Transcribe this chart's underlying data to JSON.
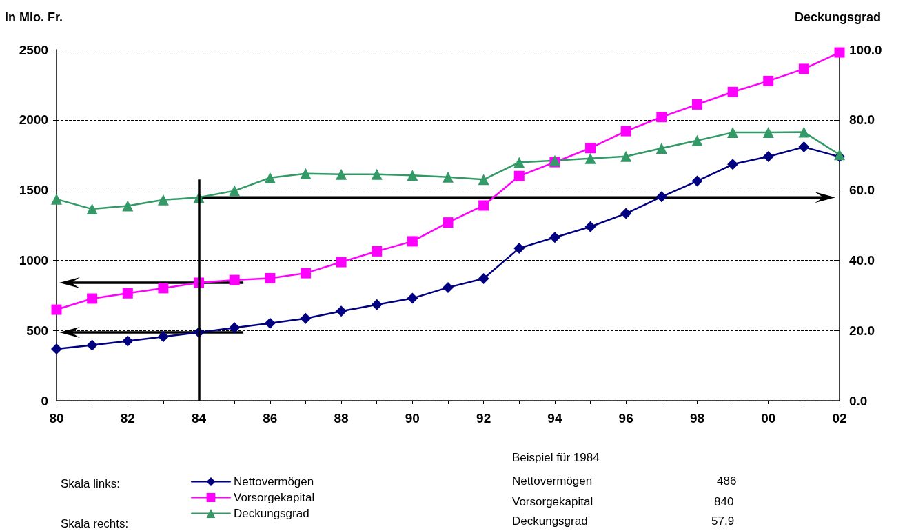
{
  "chart_data": {
    "type": "line",
    "ylabel": "in Mio. Fr.",
    "y2label": "Deckungsgrad",
    "categories": [
      "80",
      null,
      "82",
      null,
      "84",
      null,
      "86",
      null,
      "88",
      null,
      "90",
      null,
      "92",
      null,
      "94",
      null,
      "96",
      null,
      "98",
      null,
      "00",
      null,
      "02"
    ],
    "series": [
      {
        "name": "Nettovermögen",
        "color": "#000080",
        "marker": "diamond",
        "values": [
          368,
          395,
          425,
          455,
          486,
          519,
          551,
          586,
          637,
          684,
          729,
          806,
          869,
          1086,
          1163,
          1239,
          1333,
          1452,
          1564,
          1683,
          1739,
          1807,
          1737
        ]
      },
      {
        "name": "Vorsorgekapital",
        "color": "#ff00ff",
        "marker": "square",
        "values": [
          648,
          727,
          765,
          801,
          840,
          859,
          872,
          908,
          987,
          1064,
          1135,
          1269,
          1390,
          1600,
          1699,
          1799,
          1920,
          2020,
          2110,
          2199,
          2277,
          2363,
          2480
        ]
      },
      {
        "name": "Deckungsgrad",
        "color": "#339966",
        "marker": "triangle",
        "axis": "y2",
        "values": [
          57.4,
          54.6,
          55.5,
          57.2,
          57.9,
          59.8,
          63.5,
          64.7,
          64.5,
          64.5,
          64.2,
          63.7,
          63.0,
          67.9,
          68.4,
          69.0,
          69.6,
          71.9,
          74.1,
          76.4,
          76.4,
          76.5,
          70.1
        ]
      }
    ],
    "ylim": [
      0,
      2500
    ],
    "yticks": [
      0,
      500,
      1000,
      1500,
      2000,
      2500
    ],
    "y2lim": [
      0,
      100
    ],
    "y2ticks": [
      {
        "value": 0,
        "label": "0.0"
      },
      {
        "value": 20,
        "label": "20.0"
      },
      {
        "value": 40,
        "label": "40.0"
      },
      {
        "value": 60,
        "label": "60.0"
      },
      {
        "value": 80,
        "label": "80.0"
      },
      {
        "value": 100,
        "label": "100.0"
      }
    ],
    "ref_lines": [
      {
        "axis": "x",
        "value": "84",
        "color": "#000000",
        "line_style": "solid"
      }
    ],
    "grid": "y",
    "legend": "bottom left",
    "line_style": "solid",
    "annotations": [
      "Skala links:",
      "Skala rechts:",
      "Beispiel für 1984",
      "Nettovermögen",
      "486",
      "Vorsorgekapital",
      "840",
      "Deckungsgrad",
      "57.9"
    ]
  }
}
